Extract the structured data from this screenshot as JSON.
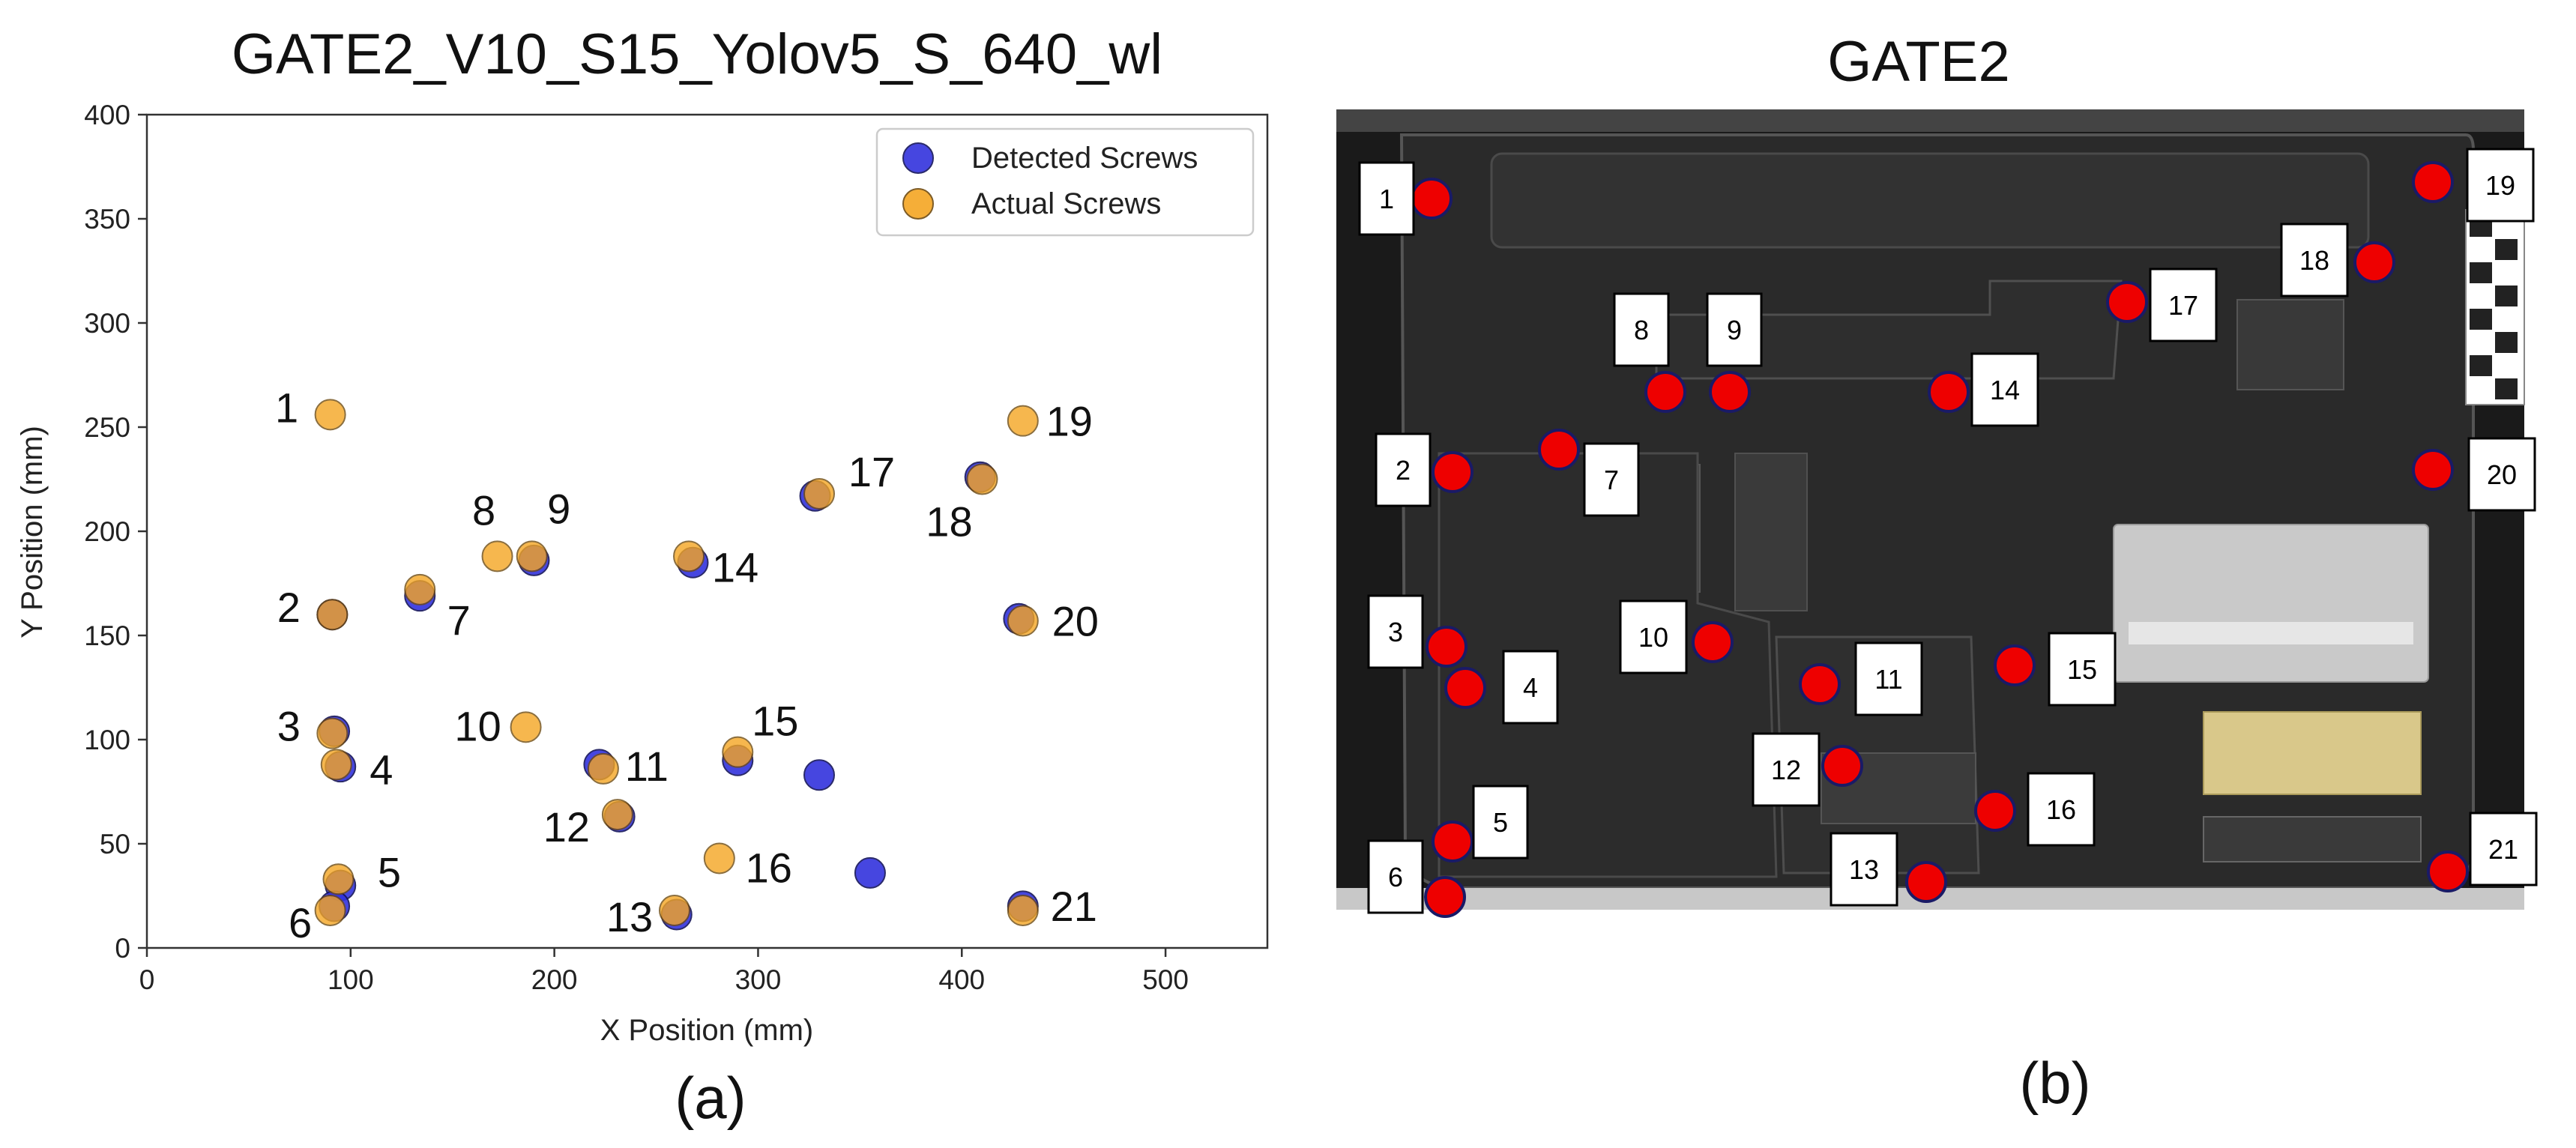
{
  "panel_a": {
    "title": "GATE2_V10_S15_Yolov5_S_640_wl",
    "tag": "(a)"
  },
  "panel_b": {
    "title": "GATE2",
    "tag": "(b)",
    "markers": [
      {
        "label": "1"
      },
      {
        "label": "2"
      },
      {
        "label": "3"
      },
      {
        "label": "4"
      },
      {
        "label": "5"
      },
      {
        "label": "6"
      },
      {
        "label": "7"
      },
      {
        "label": "8"
      },
      {
        "label": "9"
      },
      {
        "label": "10"
      },
      {
        "label": "11"
      },
      {
        "label": "12"
      },
      {
        "label": "13"
      },
      {
        "label": "14"
      },
      {
        "label": "15"
      },
      {
        "label": "16"
      },
      {
        "label": "17"
      },
      {
        "label": "18"
      },
      {
        "label": "19"
      },
      {
        "label": "20"
      },
      {
        "label": "21"
      }
    ]
  },
  "chart_data": {
    "type": "scatter",
    "title": "GATE2_V10_S15_Yolov5_S_640_wl",
    "xlabel": "X Position (mm)",
    "ylabel": "Y Position (mm)",
    "xlim": [
      0,
      550
    ],
    "ylim": [
      0,
      400
    ],
    "xticks": [
      0,
      100,
      200,
      300,
      400,
      500
    ],
    "yticks": [
      0,
      50,
      100,
      150,
      200,
      250,
      300,
      350,
      400
    ],
    "legend_position": "top-right",
    "grid": false,
    "series": [
      {
        "name": "Detected Screws",
        "color": "#3333dd",
        "points": [
          [
            91,
            160
          ],
          [
            92,
            104
          ],
          [
            95,
            87
          ],
          [
            95,
            30
          ],
          [
            92,
            20
          ],
          [
            134,
            169
          ],
          [
            190,
            186
          ],
          [
            222,
            88
          ],
          [
            232,
            63
          ],
          [
            260,
            16
          ],
          [
            268,
            185
          ],
          [
            290,
            90
          ],
          [
            328,
            217
          ],
          [
            330,
            83
          ],
          [
            355,
            36
          ],
          [
            409,
            226
          ],
          [
            428,
            158
          ],
          [
            430,
            20
          ]
        ]
      },
      {
        "name": "Actual Screws",
        "color": "#f5a623",
        "points": [
          {
            "x": 90,
            "y": 256,
            "label": "1"
          },
          {
            "x": 91,
            "y": 160,
            "label": "2"
          },
          {
            "x": 91,
            "y": 103,
            "label": "3"
          },
          {
            "x": 93,
            "y": 88,
            "label": "4"
          },
          {
            "x": 94,
            "y": 33,
            "label": "5"
          },
          {
            "x": 90,
            "y": 18,
            "label": "6"
          },
          {
            "x": 134,
            "y": 172,
            "label": "7"
          },
          {
            "x": 172,
            "y": 188,
            "label": "8"
          },
          {
            "x": 189,
            "y": 188,
            "label": "9"
          },
          {
            "x": 186,
            "y": 106,
            "label": "10"
          },
          {
            "x": 224,
            "y": 86,
            "label": "11"
          },
          {
            "x": 231,
            "y": 64,
            "label": "12"
          },
          {
            "x": 259,
            "y": 18,
            "label": "13"
          },
          {
            "x": 266,
            "y": 188,
            "label": "14"
          },
          {
            "x": 290,
            "y": 94,
            "label": "15"
          },
          {
            "x": 281,
            "y": 43,
            "label": "16"
          },
          {
            "x": 330,
            "y": 218,
            "label": "17"
          },
          {
            "x": 410,
            "y": 225,
            "label": "18"
          },
          {
            "x": 430,
            "y": 253,
            "label": "19"
          },
          {
            "x": 430,
            "y": 157,
            "label": "20"
          },
          {
            "x": 430,
            "y": 18,
            "label": "21"
          }
        ]
      }
    ]
  }
}
